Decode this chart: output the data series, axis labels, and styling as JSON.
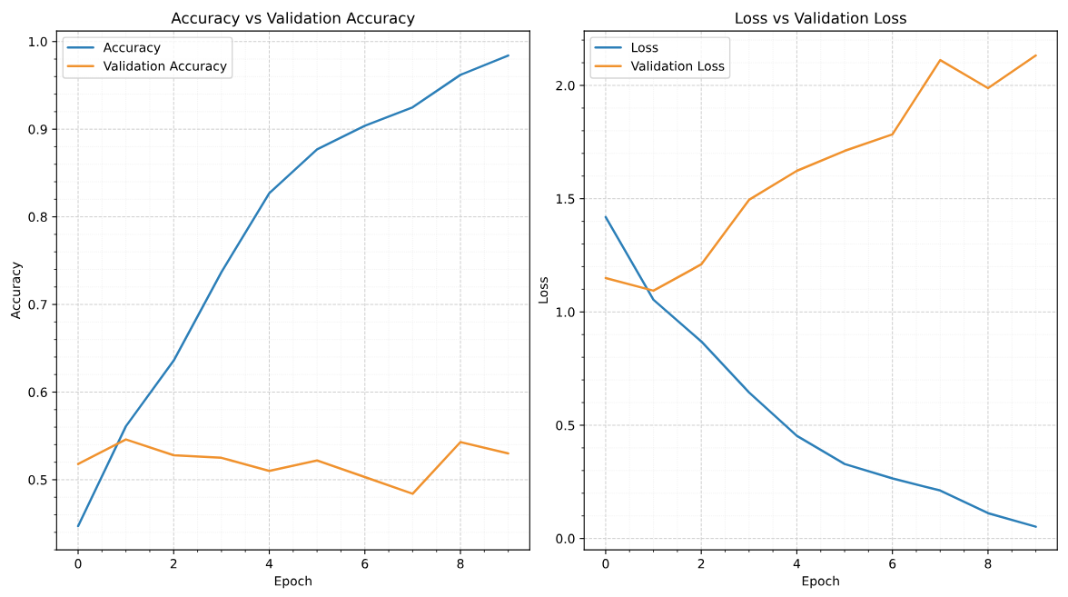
{
  "chart_data": [
    {
      "type": "line",
      "title": "Accuracy vs Validation Accuracy",
      "xlabel": "Epoch",
      "ylabel": "Accuracy",
      "x": [
        0,
        1,
        2,
        3,
        4,
        5,
        6,
        7,
        8,
        9
      ],
      "series": [
        {
          "name": "Accuracy",
          "color": "#2c7fb8",
          "values": [
            0.447,
            0.561,
            0.636,
            0.737,
            0.827,
            0.877,
            0.904,
            0.925,
            0.962,
            0.984
          ]
        },
        {
          "name": "Validation Accuracy",
          "color": "#f0922e",
          "values": [
            0.518,
            0.546,
            0.528,
            0.525,
            0.51,
            0.522,
            0.503,
            0.484,
            0.543,
            0.53
          ]
        }
      ],
      "xlim": [
        -0.45,
        9.45
      ],
      "xticks": [
        0,
        2,
        4,
        6,
        8
      ],
      "ylim": [
        0.42,
        1.012
      ],
      "yticks": [
        0.5,
        0.6,
        0.7,
        0.8,
        0.9,
        {
          "value": 1,
          "label": "1.0"
        }
      ],
      "grid": true,
      "legend": "top left"
    },
    {
      "type": "line",
      "title": "Loss vs Validation Loss",
      "xlabel": "Epoch",
      "ylabel": "Loss",
      "x": [
        0,
        1,
        2,
        3,
        4,
        5,
        6,
        7,
        8,
        9
      ],
      "series": [
        {
          "name": "Loss",
          "color": "#2c7fb8",
          "values": [
            1.419,
            1.054,
            0.87,
            0.645,
            0.453,
            0.329,
            0.265,
            0.212,
            0.112,
            0.052
          ]
        },
        {
          "name": "Validation Loss",
          "color": "#f0922e",
          "values": [
            1.15,
            1.094,
            1.21,
            1.495,
            1.623,
            1.711,
            1.784,
            2.112,
            1.988,
            2.132
          ]
        }
      ],
      "xlim": [
        -0.45,
        9.45
      ],
      "xticks": [
        0,
        2,
        4,
        6,
        8
      ],
      "ylim": [
        -0.05,
        2.24
      ],
      "yticks": [
        {
          "value": 0,
          "label": "0.0"
        },
        0.5,
        {
          "value": 1,
          "label": "1.0"
        },
        1.5,
        {
          "value": 2,
          "label": "2.0"
        }
      ],
      "grid": true,
      "legend": "top left"
    }
  ]
}
